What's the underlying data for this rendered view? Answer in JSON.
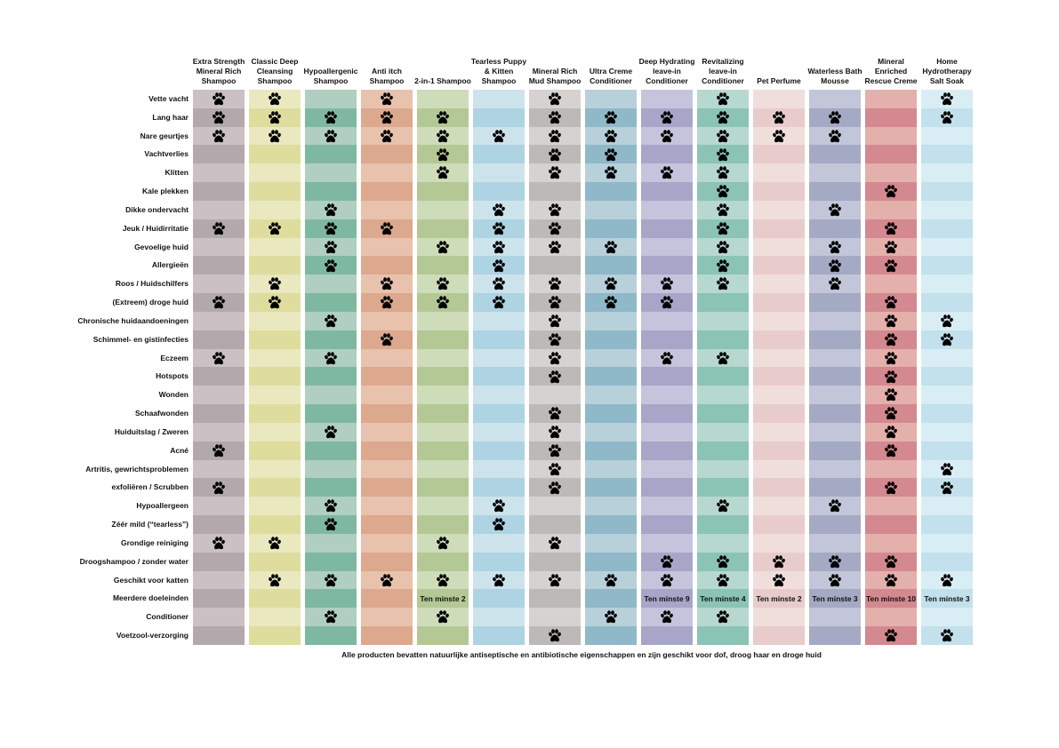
{
  "table": {
    "columns": [
      "Extra Strength Mineral Rich Shampoo",
      "Classic Deep Cleansing Shampoo",
      "Hypoallergenic Shampoo",
      "Anti itch Shampoo",
      "2-in-1 Shampoo",
      "Tearless Puppy & Kitten Shampoo",
      "Mineral Rich Mud Shampoo",
      "Ultra Creme Conditioner",
      "Deep Hydrating leave-in Conditioner",
      "Revitalizing leave-in Conditioner",
      "Pet Perfume",
      "Waterless Bath Mousse",
      "Mineral Enriched Rescue Creme",
      "Home Hydrotherapy Salt Soak"
    ],
    "rows": [
      {
        "label": "Vette vacht",
        "cells": [
          true,
          true,
          null,
          true,
          null,
          null,
          true,
          null,
          null,
          true,
          null,
          null,
          null,
          true
        ]
      },
      {
        "label": "Lang haar",
        "cells": [
          true,
          true,
          true,
          true,
          true,
          null,
          true,
          true,
          true,
          true,
          true,
          true,
          null,
          true
        ]
      },
      {
        "label": "Nare geurtjes",
        "cells": [
          true,
          true,
          true,
          true,
          true,
          true,
          true,
          true,
          true,
          true,
          true,
          true,
          null,
          null
        ]
      },
      {
        "label": "Vachtverlies",
        "cells": [
          null,
          null,
          null,
          null,
          true,
          null,
          true,
          true,
          null,
          true,
          null,
          null,
          null,
          null
        ]
      },
      {
        "label": "Klitten",
        "cells": [
          null,
          null,
          null,
          null,
          true,
          null,
          true,
          true,
          true,
          true,
          null,
          null,
          null,
          null
        ]
      },
      {
        "label": "Kale plekken",
        "cells": [
          null,
          null,
          null,
          null,
          null,
          null,
          null,
          null,
          null,
          true,
          null,
          null,
          true,
          null
        ]
      },
      {
        "label": "Dikke ondervacht",
        "cells": [
          null,
          null,
          true,
          null,
          null,
          true,
          true,
          null,
          null,
          true,
          null,
          true,
          null,
          null
        ]
      },
      {
        "label": "Jeuk / Huidirritatie",
        "cells": [
          true,
          true,
          true,
          true,
          null,
          true,
          true,
          null,
          null,
          true,
          null,
          null,
          true,
          null
        ]
      },
      {
        "label": "Gevoelige huid",
        "cells": [
          null,
          null,
          true,
          null,
          true,
          true,
          true,
          true,
          null,
          true,
          null,
          true,
          true,
          null
        ]
      },
      {
        "label": "Allergieën",
        "cells": [
          null,
          null,
          true,
          null,
          null,
          true,
          null,
          null,
          null,
          true,
          null,
          true,
          true,
          null
        ]
      },
      {
        "label": "Roos / Huidschilfers",
        "cells": [
          null,
          true,
          null,
          true,
          true,
          true,
          true,
          true,
          true,
          true,
          null,
          true,
          null,
          null
        ]
      },
      {
        "label": "(Extreem) droge huid",
        "cells": [
          true,
          true,
          null,
          true,
          true,
          true,
          true,
          true,
          true,
          null,
          null,
          null,
          true,
          null
        ]
      },
      {
        "label": "Chronische huidaandoeningen",
        "cells": [
          null,
          null,
          true,
          null,
          null,
          null,
          true,
          null,
          null,
          null,
          null,
          null,
          true,
          true
        ]
      },
      {
        "label": "Schimmel- en gistinfecties",
        "cells": [
          null,
          null,
          null,
          true,
          null,
          null,
          true,
          null,
          null,
          null,
          null,
          null,
          true,
          true
        ]
      },
      {
        "label": "Eczeem",
        "cells": [
          true,
          null,
          true,
          null,
          null,
          null,
          true,
          null,
          true,
          true,
          null,
          null,
          true,
          null
        ]
      },
      {
        "label": "Hotspots",
        "cells": [
          null,
          null,
          null,
          null,
          null,
          null,
          true,
          null,
          null,
          null,
          null,
          null,
          true,
          null
        ]
      },
      {
        "label": "Wonden",
        "cells": [
          null,
          null,
          null,
          null,
          null,
          null,
          null,
          null,
          null,
          null,
          null,
          null,
          true,
          null
        ]
      },
      {
        "label": "Schaafwonden",
        "cells": [
          null,
          null,
          null,
          null,
          null,
          null,
          true,
          null,
          null,
          null,
          null,
          null,
          true,
          null
        ]
      },
      {
        "label": "Huiduitslag / Zweren",
        "cells": [
          null,
          null,
          true,
          null,
          null,
          null,
          true,
          null,
          null,
          null,
          null,
          null,
          true,
          null
        ]
      },
      {
        "label": "Acné",
        "cells": [
          true,
          null,
          null,
          null,
          null,
          null,
          true,
          null,
          null,
          null,
          null,
          null,
          true,
          null
        ]
      },
      {
        "label": "Artritis, gewrichtsproblemen",
        "cells": [
          null,
          null,
          null,
          null,
          null,
          null,
          true,
          null,
          null,
          null,
          null,
          null,
          null,
          true
        ]
      },
      {
        "label": "exfoliëren / Scrubben",
        "cells": [
          true,
          null,
          null,
          null,
          null,
          null,
          true,
          null,
          null,
          null,
          null,
          null,
          true,
          true
        ]
      },
      {
        "label": "Hypoallergeen",
        "cells": [
          null,
          null,
          true,
          null,
          null,
          true,
          null,
          null,
          null,
          true,
          null,
          true,
          null,
          null
        ]
      },
      {
        "label": "Zéér mild (“tearless”)",
        "cells": [
          null,
          null,
          true,
          null,
          null,
          true,
          null,
          null,
          null,
          null,
          null,
          null,
          null,
          null
        ]
      },
      {
        "label": "Grondige reiniging",
        "cells": [
          true,
          true,
          null,
          null,
          true,
          null,
          true,
          null,
          null,
          null,
          null,
          null,
          null,
          null
        ]
      },
      {
        "label": "Droogshampoo / zonder water",
        "cells": [
          null,
          null,
          null,
          null,
          null,
          null,
          null,
          null,
          true,
          true,
          true,
          true,
          true,
          null
        ]
      },
      {
        "label": "Geschikt voor katten",
        "cells": [
          null,
          true,
          true,
          true,
          true,
          true,
          true,
          true,
          true,
          true,
          true,
          true,
          true,
          true
        ]
      },
      {
        "label": "Meerdere doeleinden",
        "cells": [
          null,
          null,
          null,
          null,
          "Ten minste 2",
          null,
          null,
          null,
          "Ten minste 9",
          "Ten minste 4",
          "Ten minste 2",
          "Ten minste 3",
          "Ten minste 10",
          "Ten minste 3"
        ]
      },
      {
        "label": "Conditioner",
        "cells": [
          null,
          null,
          true,
          null,
          true,
          null,
          null,
          true,
          true,
          true,
          null,
          null,
          null,
          null
        ]
      },
      {
        "label": "Voetzool-verzorging",
        "cells": [
          null,
          null,
          null,
          null,
          null,
          null,
          true,
          null,
          null,
          null,
          null,
          null,
          true,
          true
        ]
      }
    ]
  },
  "footer": "Alle producten bevatten natuurlijke antiseptische en antibiotische eigenschappen en zijn geschikt voor dof, droog haar en droge huid"
}
